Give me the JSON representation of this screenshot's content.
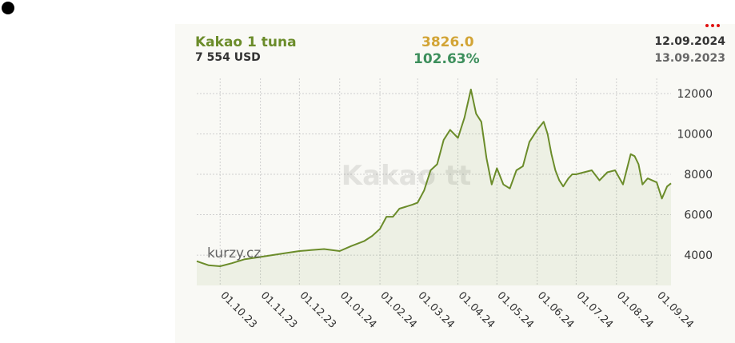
{
  "header": {
    "title": "Kakao 1 tuna",
    "subtitle": "7 554 USD",
    "value": "3826.0",
    "change": "102.63%",
    "date_end": "12.09.2024",
    "date_start": "13.09.2023"
  },
  "watermark": "Kakao tt",
  "logo_text": "kurzy.cz",
  "colors": {
    "line": "#6b8c2a",
    "title": "#6b8c2a",
    "value": "#d2a435",
    "change": "#3d8f5c",
    "menu": "#e01010"
  },
  "chart_data": {
    "type": "area",
    "grid": true,
    "y_axis_side": "right",
    "ylim": [
      2500,
      12750
    ],
    "yticks": [
      4000,
      6000,
      8000,
      10000,
      12000
    ],
    "ytick_labels": [
      "4000",
      "6000",
      "8000",
      "10000",
      "12000"
    ],
    "xlim": [
      "2023-09-13",
      "2024-09-12"
    ],
    "xticks": [
      "2023-10-01",
      "2023-11-01",
      "2023-12-01",
      "2024-01-01",
      "2024-02-01",
      "2024-03-01",
      "2024-04-01",
      "2024-05-01",
      "2024-06-01",
      "2024-07-01",
      "2024-08-01",
      "2024-09-01"
    ],
    "xtick_labels": [
      "01.10.23",
      "01.11.23",
      "01.12.23",
      "01.01.24",
      "01.02.24",
      "01.03.24",
      "01.04.24",
      "01.05.24",
      "01.06.24",
      "01.07.24",
      "01.08.24",
      "01.09.24"
    ],
    "series": [
      {
        "x": [
          "2023-09-13",
          "2023-09-22",
          "2023-10-01",
          "2023-10-10",
          "2023-10-20",
          "2023-10-31",
          "2023-11-10",
          "2023-11-20",
          "2023-12-01",
          "2023-12-10",
          "2023-12-20",
          "2024-01-01",
          "2024-01-10",
          "2024-01-20",
          "2024-01-26",
          "2024-02-01",
          "2024-02-06",
          "2024-02-11",
          "2024-02-16",
          "2024-02-21",
          "2024-02-26",
          "2024-03-01",
          "2024-03-06",
          "2024-03-11",
          "2024-03-16",
          "2024-03-21",
          "2024-03-26",
          "2024-04-01",
          "2024-04-06",
          "2024-04-11",
          "2024-04-15",
          "2024-04-19",
          "2024-04-23",
          "2024-04-27",
          "2024-05-01",
          "2024-05-06",
          "2024-05-11",
          "2024-05-16",
          "2024-05-21",
          "2024-05-26",
          "2024-06-01",
          "2024-06-06",
          "2024-06-09",
          "2024-06-12",
          "2024-06-15",
          "2024-06-18",
          "2024-06-21",
          "2024-06-25",
          "2024-06-28",
          "2024-07-01",
          "2024-07-07",
          "2024-07-13",
          "2024-07-19",
          "2024-07-25",
          "2024-07-31",
          "2024-08-06",
          "2024-08-12",
          "2024-08-15",
          "2024-08-18",
          "2024-08-21",
          "2024-08-25",
          "2024-09-01",
          "2024-09-05",
          "2024-09-09",
          "2024-09-12"
        ],
        "values": [
          3700,
          3500,
          3450,
          3600,
          3800,
          3900,
          4000,
          4100,
          4200,
          4250,
          4300,
          4200,
          4450,
          4700,
          4950,
          5300,
          5900,
          5900,
          6300,
          6400,
          6500,
          6600,
          7200,
          8200,
          8500,
          9700,
          10200,
          9800,
          10800,
          12200,
          11000,
          10600,
          8800,
          7500,
          8300,
          7500,
          7300,
          8200,
          8400,
          9600,
          10200,
          10600,
          10000,
          9000,
          8200,
          7700,
          7400,
          7800,
          8000,
          8000,
          8100,
          8200,
          7700,
          8100,
          8200,
          7500,
          9000,
          8900,
          8500,
          7500,
          7800,
          7600,
          6800,
          7400,
          7554
        ]
      }
    ]
  }
}
